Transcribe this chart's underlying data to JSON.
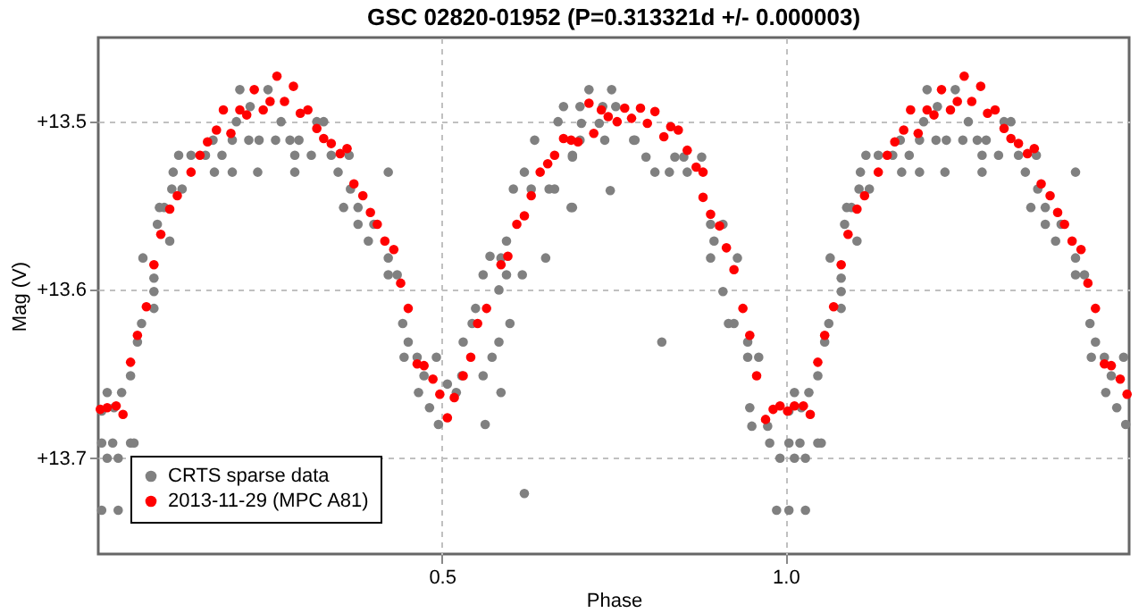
{
  "chart_data": {
    "type": "scatter",
    "title": "GSC 02820-01952 (P=0.313321d +/- 0.000003)",
    "xlabel": "Phase",
    "ylabel": "Mag (V)",
    "xlim": [
      0,
      1.5
    ],
    "ylim": [
      13.757,
      13.45
    ],
    "xticks": [
      {
        "value": 0.5,
        "label": "0.5"
      },
      {
        "value": 1.0,
        "label": "1.0"
      }
    ],
    "yticks": [
      {
        "value": 13.5,
        "label": "+13.5"
      },
      {
        "value": 13.6,
        "label": "+13.6"
      },
      {
        "value": 13.7,
        "label": "+13.7"
      }
    ],
    "grid": true,
    "legend": "bottom left",
    "marker": "circle",
    "series": [
      {
        "name": "CRTS sparse data",
        "color": "#808080",
        "x": [
          0.005,
          0.005,
          0.005,
          0.013,
          0.013,
          0.021,
          0.023,
          0.029,
          0.029,
          0.034,
          0.047,
          0.047,
          0.052,
          0.057,
          0.063,
          0.065,
          0.081,
          0.081,
          0.081,
          0.086,
          0.089,
          0.096,
          0.104,
          0.107,
          0.122,
          0.109,
          0.117,
          0.135,
          0.156,
          0.169,
          0.195,
          0.18,
          0.167,
          0.195,
          0.219,
          0.234,
          0.258,
          0.279,
          0.201,
          0.221,
          0.206,
          0.247,
          0.232,
          0.266,
          0.286,
          0.286,
          0.292,
          0.31,
          0.318,
          0.328,
          0.339,
          0.349,
          0.357,
          0.365,
          0.367,
          0.378,
          0.378,
          0.393,
          0.401,
          0.422,
          0.422,
          0.422,
          0.435,
          0.443,
          0.445,
          0.451,
          0.464,
          0.466,
          0.474,
          0.482,
          0.495,
          0.492,
          0.508,
          0.521,
          0.529,
          0.531,
          0.544,
          0.549,
          0.56,
          0.56,
          0.563,
          0.57,
          0.573,
          0.583,
          0.583,
          0.586,
          0.586,
          0.594,
          0.594,
          0.599,
          0.604,
          0.62,
          0.62,
          0.617,
          0.63,
          0.635,
          0.651,
          0.656,
          0.664,
          0.669,
          0.677,
          0.688,
          0.69,
          0.701,
          0.714,
          0.747,
          0.701,
          0.734,
          0.753,
          0.703,
          0.729,
          0.779,
          0.781,
          0.737,
          0.69,
          0.797,
          0.81,
          0.831,
          0.745,
          0.69,
          0.839,
          0.857,
          0.852,
          0.878,
          0.891,
          0.896,
          0.891,
          0.909,
          0.93,
          0.909,
          0.917,
          0.925,
          0.82,
          0.945,
          0.945,
          0.961,
          0.948,
          0.951,
          0.974,
          0.977,
          0.992,
          0.987,
          1.005,
          1.005,
          1.005,
          1.013,
          1.013,
          1.021,
          1.023,
          1.029,
          1.029,
          1.034,
          1.047,
          1.047,
          1.052,
          1.057,
          1.063,
          1.065,
          1.081,
          1.081,
          1.081,
          1.086,
          1.089,
          1.096,
          1.104,
          1.107,
          1.122,
          1.109,
          1.117,
          1.135,
          1.156,
          1.169,
          1.195,
          1.18,
          1.167,
          1.195,
          1.219,
          1.234,
          1.258,
          1.279,
          1.201,
          1.221,
          1.206,
          1.247,
          1.232,
          1.266,
          1.286,
          1.286,
          1.292,
          1.31,
          1.318,
          1.328,
          1.339,
          1.349,
          1.357,
          1.365,
          1.367,
          1.378,
          1.378,
          1.393,
          1.401,
          1.422,
          1.422,
          1.422,
          1.435,
          1.443,
          1.445,
          1.451,
          1.464,
          1.466,
          1.474,
          1.482,
          1.495,
          1.492
        ],
        "values": [
          13.672,
          13.691,
          13.731,
          13.7,
          13.661,
          13.691,
          13.67,
          13.731,
          13.7,
          13.661,
          13.691,
          13.651,
          13.691,
          13.631,
          13.62,
          13.581,
          13.601,
          13.611,
          13.593,
          13.561,
          13.551,
          13.551,
          13.571,
          13.54,
          13.54,
          13.53,
          13.52,
          13.52,
          13.52,
          13.53,
          13.53,
          13.52,
          13.511,
          13.511,
          13.511,
          13.511,
          13.511,
          13.511,
          13.5,
          13.491,
          13.481,
          13.481,
          13.53,
          13.5,
          13.52,
          13.53,
          13.511,
          13.52,
          13.5,
          13.5,
          13.52,
          13.53,
          13.551,
          13.52,
          13.54,
          13.551,
          13.561,
          13.571,
          13.561,
          13.53,
          13.581,
          13.591,
          13.591,
          13.62,
          13.64,
          13.631,
          13.64,
          13.661,
          13.651,
          13.67,
          13.68,
          13.64,
          13.656,
          13.661,
          13.651,
          13.631,
          13.62,
          13.611,
          13.591,
          13.651,
          13.68,
          13.58,
          13.64,
          13.6,
          13.631,
          13.661,
          13.581,
          13.571,
          13.591,
          13.62,
          13.54,
          13.53,
          13.721,
          13.591,
          13.54,
          13.511,
          13.581,
          13.54,
          13.54,
          13.5,
          13.491,
          13.551,
          13.52,
          13.511,
          13.481,
          13.481,
          13.491,
          13.491,
          13.491,
          13.501,
          13.501,
          13.511,
          13.511,
          13.511,
          13.521,
          13.521,
          13.53,
          13.53,
          13.541,
          13.551,
          13.521,
          13.53,
          13.521,
          13.521,
          13.561,
          13.571,
          13.581,
          13.561,
          13.581,
          13.601,
          13.62,
          13.62,
          13.631,
          13.631,
          13.64,
          13.64,
          13.67,
          13.681,
          13.681,
          13.691,
          13.7,
          13.731,
          13.672,
          13.691,
          13.731,
          13.7,
          13.661,
          13.691,
          13.67,
          13.731,
          13.7,
          13.661,
          13.691,
          13.651,
          13.691,
          13.631,
          13.62,
          13.581,
          13.601,
          13.611,
          13.593,
          13.561,
          13.551,
          13.551,
          13.571,
          13.54,
          13.54,
          13.53,
          13.52,
          13.52,
          13.52,
          13.53,
          13.53,
          13.52,
          13.511,
          13.511,
          13.511,
          13.511,
          13.511,
          13.511,
          13.5,
          13.491,
          13.481,
          13.481,
          13.53,
          13.5,
          13.52,
          13.53,
          13.511,
          13.52,
          13.5,
          13.5,
          13.52,
          13.53,
          13.551,
          13.52,
          13.54,
          13.551,
          13.561,
          13.571,
          13.561,
          13.53,
          13.581,
          13.591,
          13.591,
          13.62,
          13.64,
          13.631,
          13.64,
          13.661,
          13.651,
          13.67,
          13.68,
          13.64
        ]
      },
      {
        "name": "2013-11-29 (MPC A81)",
        "color": "#ff0000",
        "x": [
          0.003,
          0.013,
          0.026,
          0.036,
          0.047,
          0.057,
          0.07,
          0.081,
          0.091,
          0.104,
          0.115,
          0.135,
          0.148,
          0.159,
          0.172,
          0.182,
          0.193,
          0.206,
          0.216,
          0.227,
          0.24,
          0.25,
          0.26,
          0.271,
          0.284,
          0.294,
          0.305,
          0.318,
          0.328,
          0.339,
          0.352,
          0.362,
          0.372,
          0.385,
          0.396,
          0.406,
          0.417,
          0.43,
          0.44,
          0.451,
          0.464,
          0.474,
          0.487,
          0.497,
          0.508,
          0.518,
          0.531,
          0.542,
          0.552,
          0.565,
          0.586,
          0.596,
          0.609,
          0.62,
          0.63,
          0.643,
          0.654,
          0.664,
          0.677,
          0.688,
          0.698,
          0.714,
          0.721,
          0.732,
          0.742,
          0.755,
          0.766,
          0.776,
          0.789,
          0.799,
          0.81,
          0.823,
          0.833,
          0.844,
          0.857,
          0.87,
          0.88,
          0.88,
          0.891,
          0.904,
          0.914,
          0.925,
          0.938,
          0.948,
          0.958,
          0.971,
          0.982,
          0.992,
          1.003,
          1.013,
          1.026,
          1.036,
          1.047,
          1.057,
          1.07,
          1.081,
          1.091,
          1.104,
          1.115,
          1.135,
          1.148,
          1.159,
          1.172,
          1.182,
          1.193,
          1.206,
          1.216,
          1.227,
          1.24,
          1.25,
          1.26,
          1.271,
          1.284,
          1.294,
          1.305,
          1.318,
          1.328,
          1.339,
          1.352,
          1.362,
          1.372,
          1.385,
          1.396,
          1.406,
          1.417,
          1.43,
          1.44,
          1.451,
          1.464,
          1.474,
          1.487,
          1.497
        ],
        "values": [
          13.671,
          13.67,
          13.669,
          13.674,
          13.643,
          13.627,
          13.61,
          13.585,
          13.567,
          13.552,
          13.544,
          13.53,
          13.52,
          13.512,
          13.505,
          13.493,
          13.507,
          13.493,
          13.496,
          13.481,
          13.493,
          13.488,
          13.473,
          13.488,
          13.479,
          13.495,
          13.493,
          13.504,
          13.51,
          13.513,
          13.519,
          13.516,
          13.537,
          13.544,
          13.554,
          13.561,
          13.571,
          13.576,
          13.596,
          13.611,
          13.644,
          13.645,
          13.653,
          13.662,
          13.676,
          13.664,
          13.651,
          13.64,
          13.62,
          13.611,
          13.585,
          13.58,
          13.561,
          13.556,
          13.544,
          13.53,
          13.525,
          13.52,
          13.51,
          13.511,
          13.512,
          13.489,
          13.507,
          13.493,
          13.497,
          13.5,
          13.492,
          13.498,
          13.492,
          13.501,
          13.494,
          13.509,
          13.503,
          13.505,
          13.517,
          13.527,
          13.53,
          13.545,
          13.555,
          13.562,
          13.575,
          13.588,
          13.611,
          13.627,
          13.651,
          13.677,
          13.671,
          13.669,
          13.672,
          13.669,
          13.669,
          13.674,
          13.643,
          13.627,
          13.61,
          13.585,
          13.567,
          13.552,
          13.544,
          13.53,
          13.52,
          13.512,
          13.505,
          13.493,
          13.507,
          13.493,
          13.496,
          13.481,
          13.493,
          13.488,
          13.473,
          13.488,
          13.479,
          13.495,
          13.493,
          13.504,
          13.51,
          13.513,
          13.519,
          13.516,
          13.537,
          13.544,
          13.554,
          13.561,
          13.571,
          13.576,
          13.596,
          13.611,
          13.644,
          13.645,
          13.653,
          13.662
        ]
      }
    ]
  }
}
